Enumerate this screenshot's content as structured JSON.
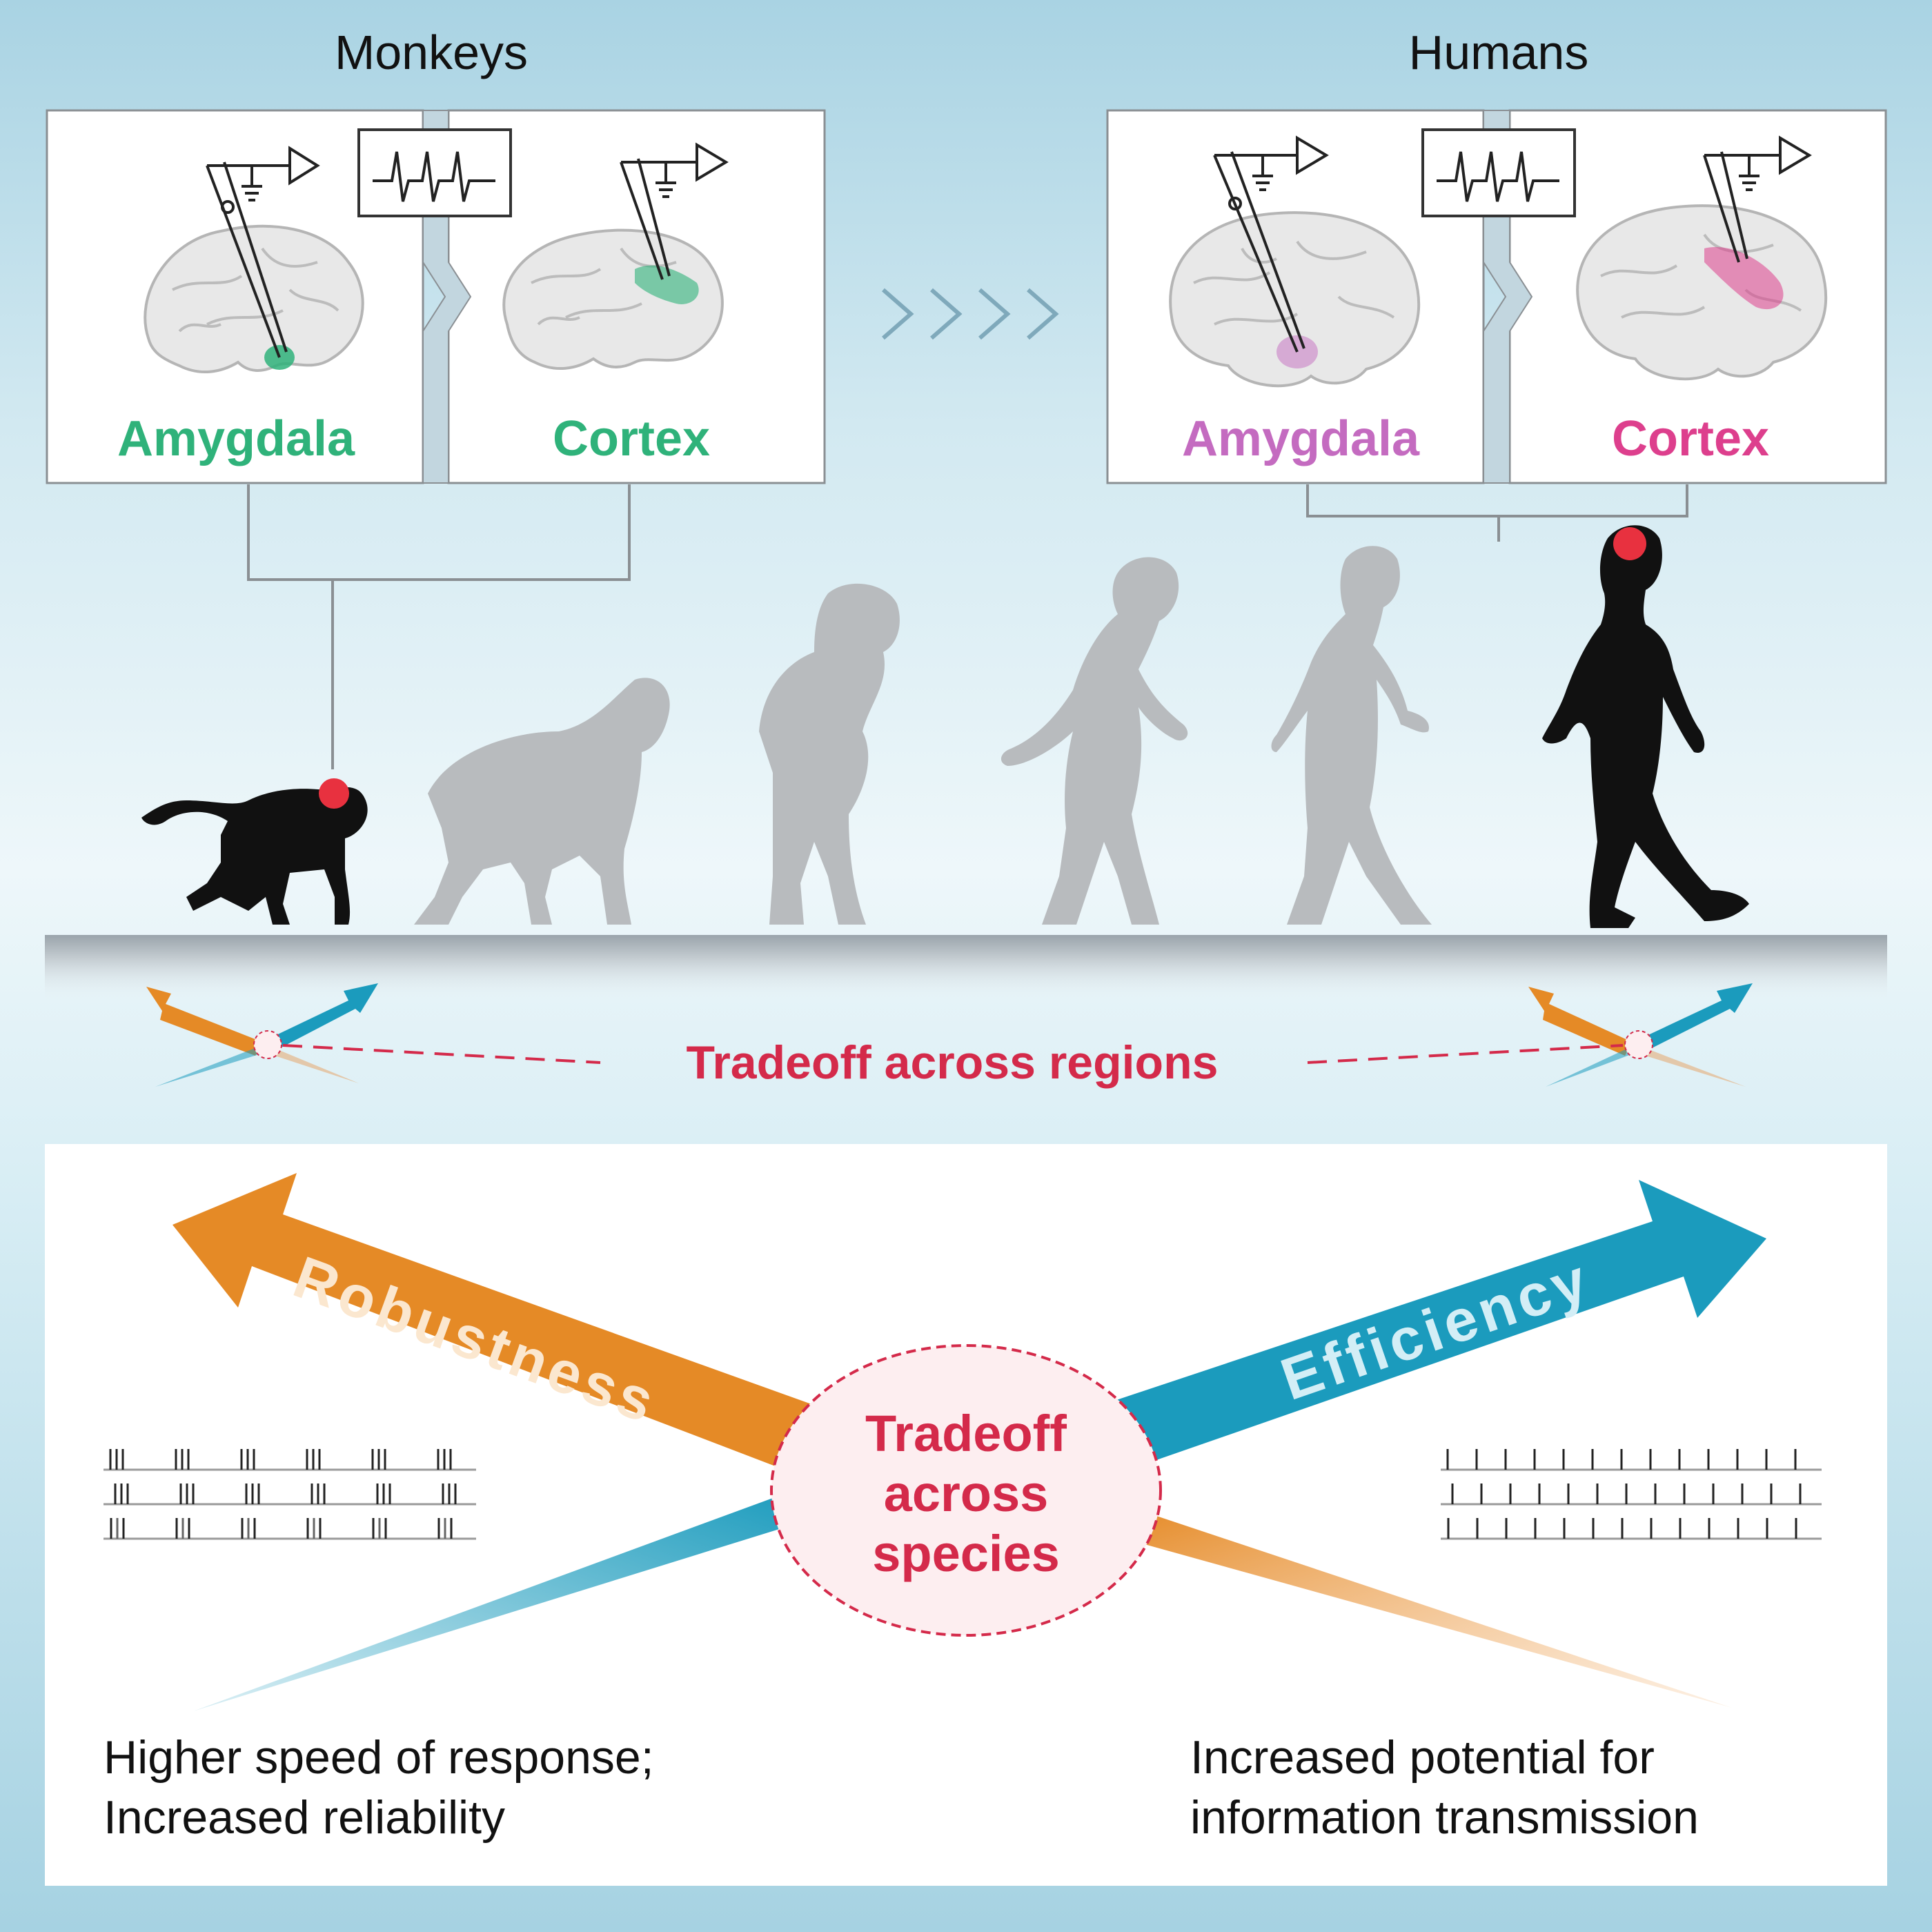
{
  "header": {
    "monkeys_label": "Monkeys",
    "humans_label": "Humans"
  },
  "monkey_panels": {
    "amygdala_label": "Amygdala",
    "cortex_label": "Cortex"
  },
  "human_panels": {
    "amygdala_label": "Amygdala",
    "cortex_label": "Cortex"
  },
  "middle": {
    "tradeoff_regions_label": "Tradeoff across regions"
  },
  "bottom": {
    "robustness_label": "Robustness",
    "efficiency_label": "Efficiency",
    "tradeoff_species_lines": [
      "Tradeoff",
      "across",
      "species"
    ],
    "robustness_caption_lines": [
      "Higher speed of response;",
      "Increased reliability"
    ],
    "efficiency_caption_lines": [
      "Increased potential for",
      "information transmission"
    ]
  },
  "colors": {
    "monkey_region": "#2fb27a",
    "human_amygdala": "#c46bc0",
    "human_cortex": "#dd3f8d",
    "tradeoff_red": "#d42a4a",
    "robustness_orange": "#e58a26",
    "efficiency_teal": "#1b9bbd"
  },
  "icons": [
    "brain-icon",
    "electrode-icon",
    "spike-trace-icon",
    "chevron-icon",
    "monkey-silhouette",
    "hominid-silhouette",
    "human-silhouette"
  ]
}
